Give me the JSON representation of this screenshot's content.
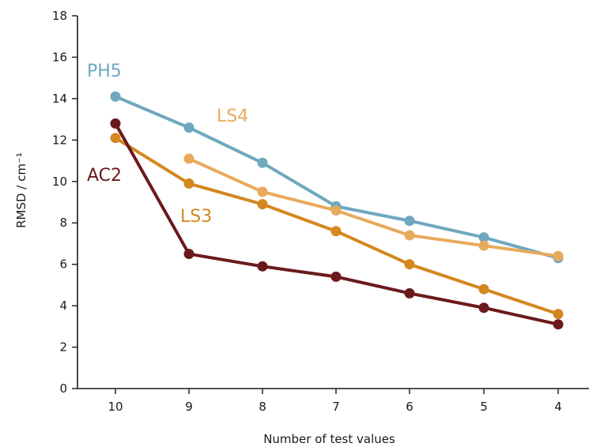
{
  "chart_data": {
    "type": "line",
    "title": "",
    "xlabel": "Number of test values",
    "ylabel": "RMSD / cm⁻¹",
    "x": [
      10,
      9,
      8,
      7,
      6,
      5,
      4
    ],
    "x_tick_labels": [
      "10",
      "9",
      "8",
      "7",
      "6",
      "5",
      "4"
    ],
    "x_reversed": true,
    "y_ticks": [
      0,
      2,
      4,
      6,
      8,
      10,
      12,
      14,
      16,
      18
    ],
    "y_tick_labels": [
      "0",
      "2",
      "4",
      "6",
      "8",
      "10",
      "12",
      "14",
      "16",
      "18"
    ],
    "ylim": [
      0,
      18
    ],
    "grid": false,
    "series": [
      {
        "name": "PH5",
        "color": "#6fa8bf",
        "x": [
          10,
          9,
          8,
          7,
          6,
          5,
          4
        ],
        "values": [
          14.1,
          12.6,
          10.9,
          8.8,
          8.1,
          7.3,
          6.3
        ]
      },
      {
        "name": "LS4",
        "color": "#e8aa5c",
        "x": [
          9,
          8,
          7,
          6,
          5,
          4
        ],
        "values": [
          11.1,
          9.5,
          8.6,
          7.4,
          6.9,
          6.4
        ]
      },
      {
        "name": "LS3",
        "color": "#d4871f",
        "x": [
          10,
          9,
          8,
          7,
          6,
          5,
          4
        ],
        "values": [
          12.1,
          9.9,
          8.9,
          7.6,
          6.0,
          4.8,
          3.6
        ]
      },
      {
        "name": "AC2",
        "color": "#6b1a1c",
        "x": [
          10,
          9,
          8,
          7,
          6,
          5,
          4
        ],
        "values": [
          12.8,
          6.5,
          5.9,
          5.4,
          4.6,
          3.9,
          3.1
        ]
      }
    ]
  }
}
